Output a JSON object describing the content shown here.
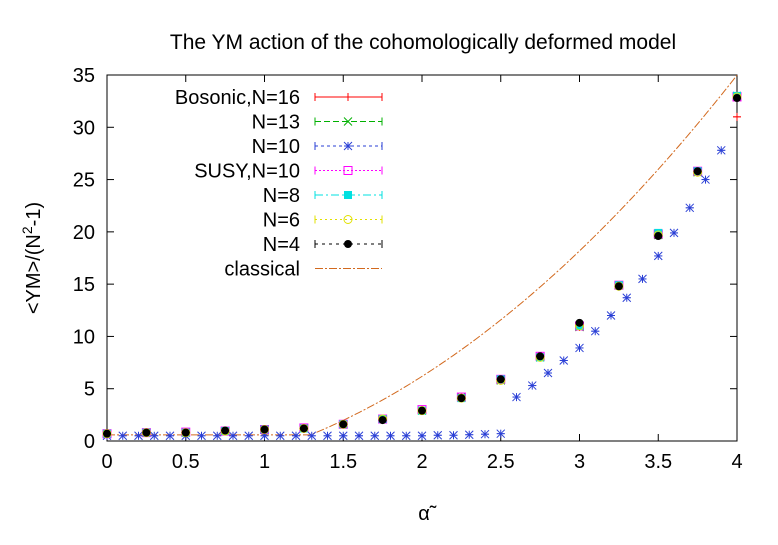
{
  "chart_data": {
    "type": "scatter",
    "title": "The YM action of the cohomologically deformed model",
    "xlabel": "α̃",
    "ylabel_parts": [
      "<YM>/(N",
      "2",
      "-1)"
    ],
    "xlim": [
      0,
      4
    ],
    "ylim": [
      0,
      35
    ],
    "xticks": [
      "0",
      "0.5",
      "1",
      "1.5",
      "2",
      "2.5",
      "3",
      "3.5",
      "4"
    ],
    "yticks": [
      "0",
      "5",
      "10",
      "15",
      "20",
      "25",
      "30",
      "35"
    ],
    "grid": false,
    "legend_position": "top-left",
    "series": [
      {
        "name": "Bosonic,N=16",
        "color": "#ff0000",
        "marker": "plus",
        "dash": "",
        "x": [
          0,
          0.25,
          0.5,
          0.75,
          1.0,
          1.25,
          1.5,
          1.75,
          2.0,
          2.25,
          2.5,
          2.75,
          3.0,
          3.25,
          3.5,
          3.75,
          4.0
        ],
        "y": [
          0.6,
          0.8,
          0.8,
          0.95,
          1.1,
          1.2,
          1.6,
          2.1,
          2.9,
          4.2,
          5.9,
          8.0,
          10.9,
          14.8,
          19.8,
          25.8,
          31.0
        ]
      },
      {
        "name": "N=13",
        "color": "#00b000",
        "marker": "x",
        "dash": "6,3",
        "x": [
          0,
          0.25,
          0.5,
          0.75,
          1.0,
          1.25,
          1.5,
          1.75,
          2.0,
          2.25,
          2.5,
          2.75,
          3.0,
          3.25,
          3.5,
          3.75,
          4.0
        ],
        "y": [
          0.7,
          0.8,
          0.8,
          0.95,
          1.1,
          1.25,
          1.6,
          2.1,
          2.9,
          4.2,
          5.8,
          8.0,
          10.9,
          14.9,
          19.7,
          25.7,
          32.9
        ]
      },
      {
        "name": "N=10",
        "color": "#2a3fd6",
        "marker": "star",
        "dash": "3,3",
        "x": [
          0,
          0.1,
          0.2,
          0.3,
          0.4,
          0.5,
          0.6,
          0.7,
          0.8,
          0.9,
          1.0,
          1.1,
          1.2,
          1.3,
          1.4,
          1.5,
          1.6,
          1.7,
          1.8,
          1.9,
          2.0,
          2.1,
          2.2,
          2.3,
          2.4,
          2.5,
          2.6,
          2.7,
          2.8,
          2.9,
          3.0,
          3.1,
          3.2,
          3.3,
          3.4,
          3.5,
          3.6,
          3.7,
          3.8,
          3.9,
          4.0
        ],
        "y": [
          0.5,
          0.5,
          0.5,
          0.5,
          0.5,
          0.5,
          0.5,
          0.5,
          0.5,
          0.5,
          0.5,
          0.5,
          0.5,
          0.5,
          0.5,
          0.5,
          0.5,
          0.5,
          0.5,
          0.5,
          0.5,
          0.55,
          0.55,
          0.6,
          0.65,
          0.7,
          4.2,
          5.3,
          6.5,
          7.7,
          8.9,
          10.5,
          12.0,
          13.7,
          15.5,
          17.7,
          19.9,
          22.3,
          25.0,
          27.8,
          33.0
        ]
      },
      {
        "name": "SUSY,N=10",
        "color": "#ff00ff",
        "marker": "square-open",
        "dash": "2,2",
        "x": [
          0,
          0.25,
          0.5,
          0.75,
          1.0,
          1.25,
          1.5,
          1.75,
          2.0,
          2.25,
          2.5,
          2.75,
          3.0,
          3.25,
          3.5,
          3.75,
          4.0
        ],
        "y": [
          0.7,
          0.8,
          0.85,
          0.95,
          1.1,
          1.25,
          1.6,
          2.1,
          3.0,
          4.2,
          5.9,
          8.1,
          11.0,
          14.9,
          19.8,
          25.8,
          32.9
        ]
      },
      {
        "name": "N=8",
        "color": "#00e0e0",
        "marker": "square-filled",
        "dash": "8,3,2,3",
        "x": [
          0,
          0.25,
          0.5,
          0.75,
          1.0,
          1.25,
          1.5,
          1.75,
          2.0,
          2.25,
          2.5,
          2.75,
          3.0,
          3.25,
          3.5,
          3.75,
          4.0
        ],
        "y": [
          0.7,
          0.8,
          0.8,
          0.95,
          1.1,
          1.2,
          1.6,
          2.1,
          2.9,
          4.1,
          5.9,
          8.0,
          11.0,
          14.9,
          19.9,
          25.8,
          33.0
        ]
      },
      {
        "name": "N=6",
        "color": "#e0e000",
        "marker": "circle-open",
        "dash": "2,3",
        "x": [
          0,
          0.25,
          0.5,
          0.75,
          1.0,
          1.25,
          1.5,
          1.75,
          2.0,
          2.25,
          2.5,
          2.75,
          3.0,
          3.25,
          3.5,
          3.75,
          4.0
        ],
        "y": [
          0.7,
          0.8,
          0.8,
          0.95,
          1.1,
          1.2,
          1.6,
          2.1,
          2.9,
          4.1,
          5.8,
          8.0,
          11.0,
          14.8,
          19.7,
          25.7,
          32.9
        ]
      },
      {
        "name": "N=4",
        "color": "#000000",
        "marker": "circle-filled",
        "dash": "3,4",
        "x": [
          0,
          0.25,
          0.5,
          0.75,
          1.0,
          1.25,
          1.5,
          1.75,
          2.0,
          2.25,
          2.5,
          2.75,
          3.0,
          3.25,
          3.5,
          3.75,
          4.0
        ],
        "y": [
          0.7,
          0.8,
          0.8,
          1.0,
          1.1,
          1.2,
          1.6,
          2.0,
          2.9,
          4.1,
          5.9,
          8.1,
          11.3,
          14.8,
          19.6,
          25.8,
          32.8
        ]
      },
      {
        "name": "classical",
        "color": "#d2691e",
        "marker": "none",
        "dash": "8,2,2,2",
        "curve": "classical"
      }
    ]
  }
}
